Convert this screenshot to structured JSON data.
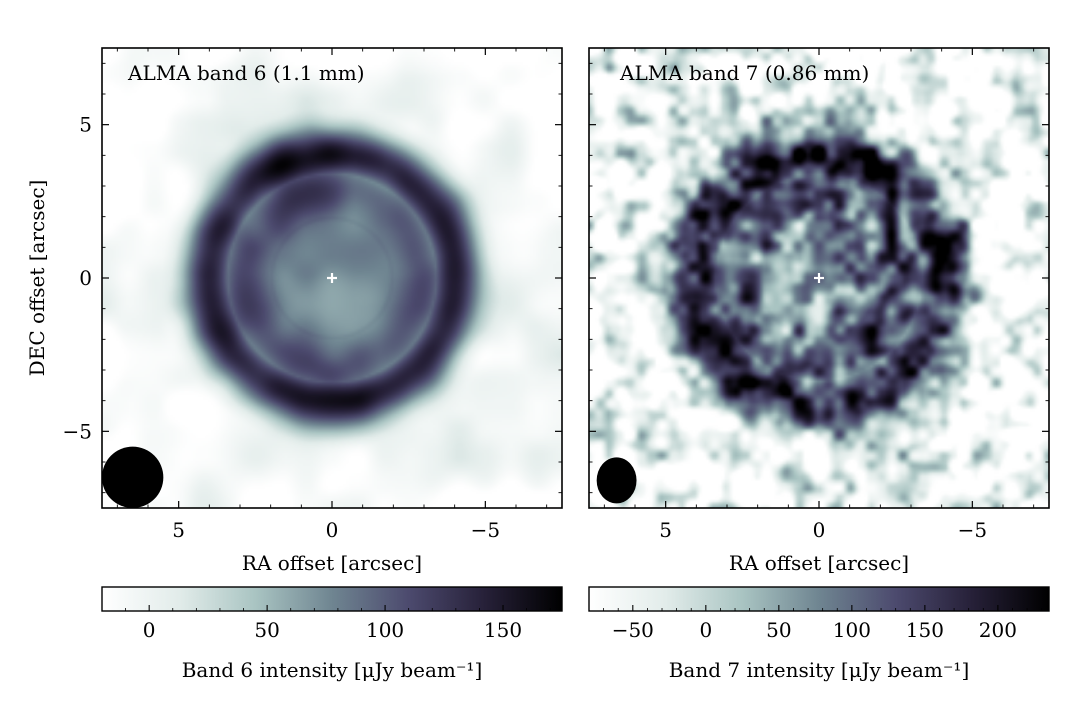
{
  "chart_data": [
    {
      "type": "heatmap",
      "title": "ALMA band 6 (1.1 mm)",
      "xlabel": "RA offset [arcsec]",
      "ylabel": "DEC offset [arcsec]",
      "xlim": [
        7.5,
        -7.5
      ],
      "ylim": [
        -7.5,
        7.5
      ],
      "xticks": [
        5,
        0,
        -5
      ],
      "xtick_labels": [
        "5",
        "0",
        "−5"
      ],
      "yticks": [
        5,
        0,
        -5
      ],
      "ytick_labels": [
        "5",
        "0",
        "−5"
      ],
      "structure": {
        "center_core_radius_arcsec": 1.2,
        "inner_ring_radius_arcsec": 2.0,
        "outer_ring_radius_arcsec": 4.0,
        "center_marker": [
          0,
          0
        ]
      },
      "beam": {
        "ra": 6.5,
        "dec": -6.5,
        "major_arcsec": 1.0,
        "minor_arcsec": 1.0
      },
      "colorbar": {
        "label": "Band 6 intensity [μJy beam⁻¹]",
        "range": [
          -20,
          175
        ],
        "ticks": [
          0,
          50,
          100,
          150
        ],
        "tick_labels": [
          "0",
          "50",
          "100",
          "150"
        ]
      },
      "noise_seed": 11
    },
    {
      "type": "heatmap",
      "title": "ALMA band 7 (0.86 mm)",
      "xlabel": "RA offset [arcsec]",
      "ylabel": "",
      "xlim": [
        7.5,
        -7.5
      ],
      "ylim": [
        -7.5,
        7.5
      ],
      "xticks": [
        5,
        0,
        -5
      ],
      "xtick_labels": [
        "5",
        "0",
        "−5"
      ],
      "yticks": [
        5,
        0,
        -5
      ],
      "ytick_labels": [],
      "structure": {
        "center_core_radius_arcsec": 1.2,
        "inner_ring_radius_arcsec": 2.0,
        "outer_ring_radius_arcsec": 4.0,
        "center_marker": [
          0,
          0
        ]
      },
      "beam": {
        "ra": 6.6,
        "dec": -6.6,
        "major_arcsec": 0.75,
        "minor_arcsec": 0.65
      },
      "colorbar": {
        "label": "Band 7 intensity [μJy beam⁻¹]",
        "range": [
          -80,
          235
        ],
        "ticks": [
          -50,
          0,
          50,
          100,
          150,
          200
        ],
        "tick_labels": [
          "−50",
          "0",
          "50",
          "100",
          "150",
          "200"
        ]
      },
      "noise_seed": 29
    }
  ],
  "colors": {
    "cmap": [
      "#ffffff",
      "#e2ecea",
      "#a9c4c2",
      "#6f8591",
      "#4c4a6e",
      "#262038",
      "#000000"
    ],
    "marker": "#ffffff",
    "beam": "#000000"
  }
}
